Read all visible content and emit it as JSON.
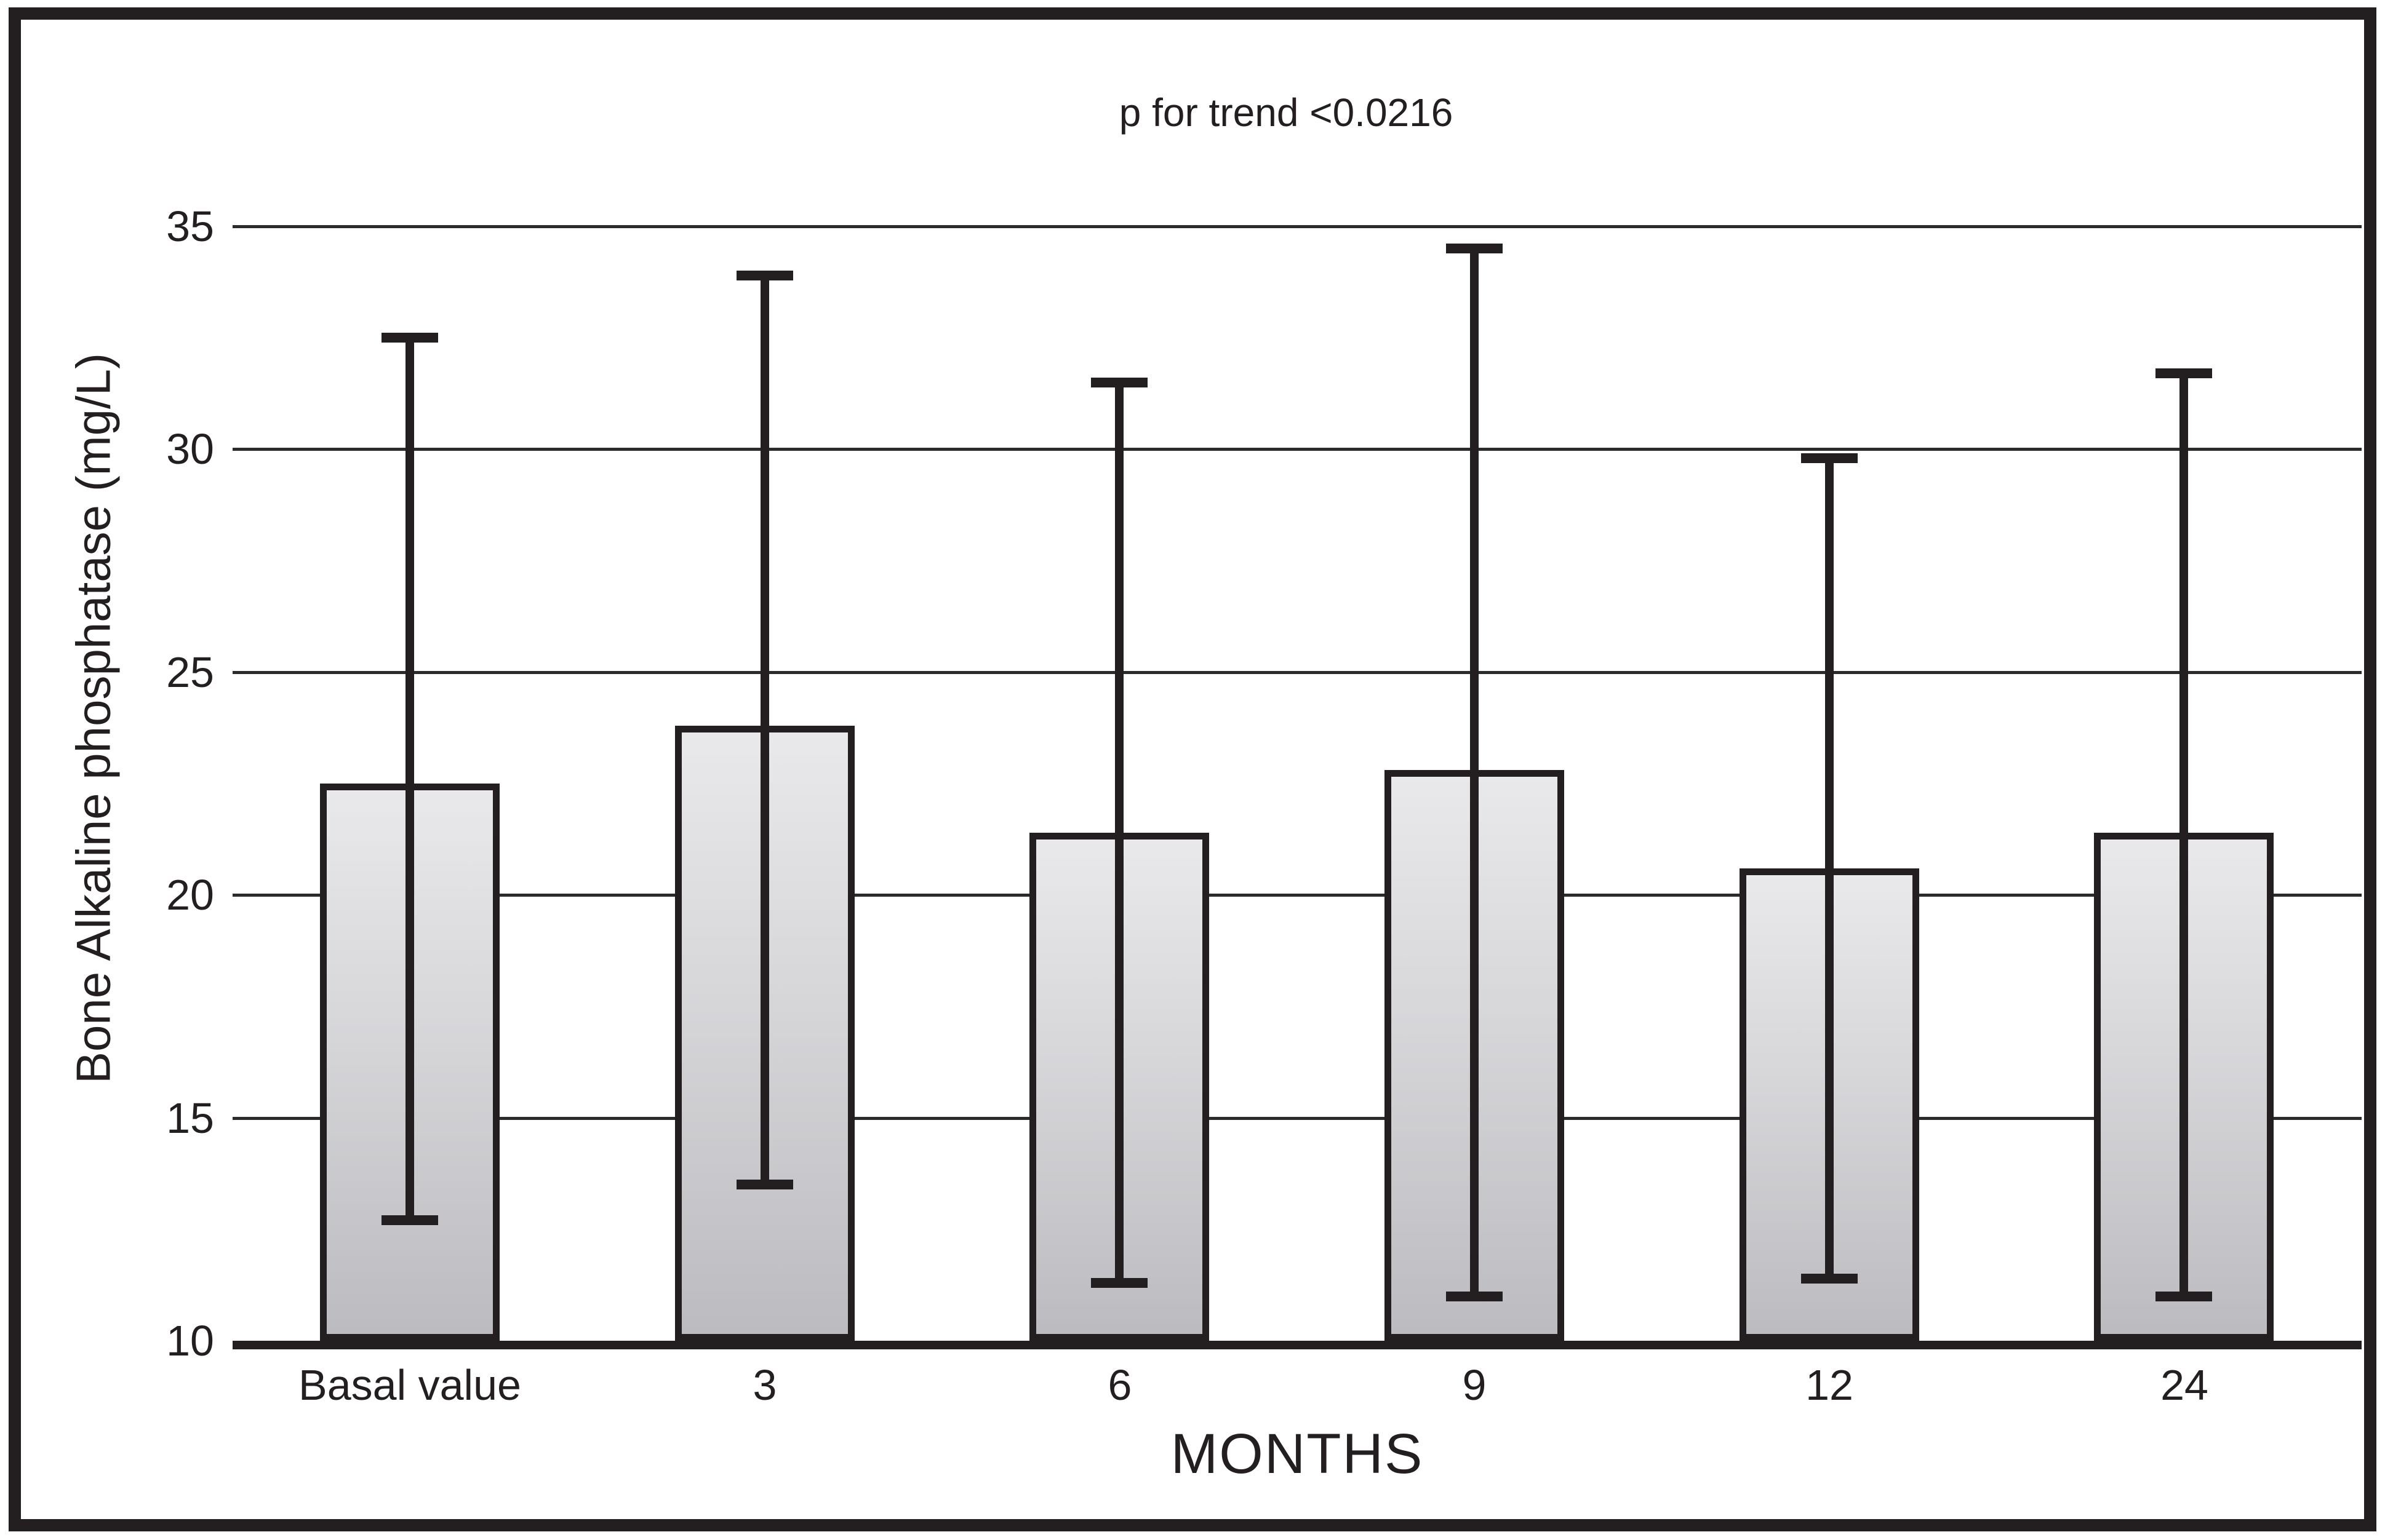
{
  "figure": {
    "title": "p for trend <0.0216",
    "x_axis_title": "MONTHS",
    "y_axis_title": "Bone Alkaline phosphatase (mg/L)"
  },
  "chart_data": {
    "type": "bar",
    "title": "p for trend <0.0216",
    "xlabel": "MONTHS",
    "ylabel": "Bone Alkaline phosphatase (mg/L)",
    "categories": [
      "Basal value",
      "3",
      "6",
      "9",
      "12",
      "24"
    ],
    "series": [
      {
        "name": "Bone Alkaline phosphatase mean",
        "values": [
          22.5,
          23.8,
          21.4,
          22.8,
          20.6,
          21.4
        ],
        "error_upper": [
          32.5,
          33.9,
          31.5,
          34.5,
          29.8,
          31.7
        ],
        "error_lower": [
          12.7,
          13.5,
          11.3,
          11.0,
          11.4,
          11.0
        ]
      }
    ],
    "ylim": [
      10,
      35
    ],
    "yticks": [
      35,
      30,
      25,
      20,
      15,
      10
    ],
    "grid": true,
    "legend": "none",
    "colors": {
      "ink": "#231f20",
      "gridline": "#2b2b2b",
      "bar_fill_top": "#e9e9eb",
      "bar_fill_bottom": "#bcbcc0",
      "background": "#ffffff"
    }
  }
}
